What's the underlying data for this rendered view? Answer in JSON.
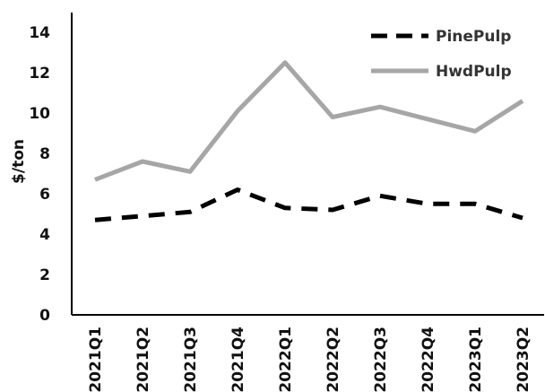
{
  "chart_data": {
    "type": "line",
    "title": "",
    "xlabel": "",
    "ylabel": "$/ton",
    "categories": [
      "2021Q1",
      "2021Q2",
      "2021Q3",
      "2021Q4",
      "2022Q1",
      "2022Q2",
      "2022Q3",
      "2022Q4",
      "2023Q1",
      "2023Q2"
    ],
    "ylim": [
      0,
      14
    ],
    "yticks": [
      "0",
      "2",
      "4",
      "6",
      "8",
      "10",
      "12",
      "14"
    ],
    "grid": false,
    "legend_position": "top-right",
    "series": [
      {
        "name": "PinePulp",
        "style": "dashed",
        "color": "#000000",
        "values": [
          4.7,
          4.9,
          5.1,
          6.2,
          5.3,
          5.2,
          5.9,
          5.5,
          5.5,
          4.8
        ]
      },
      {
        "name": "HwdPulp",
        "style": "solid",
        "color": "#a6a6a6",
        "values": [
          6.7,
          7.6,
          7.1,
          10.1,
          12.5,
          9.8,
          10.3,
          9.7,
          9.1,
          10.6
        ]
      }
    ]
  }
}
